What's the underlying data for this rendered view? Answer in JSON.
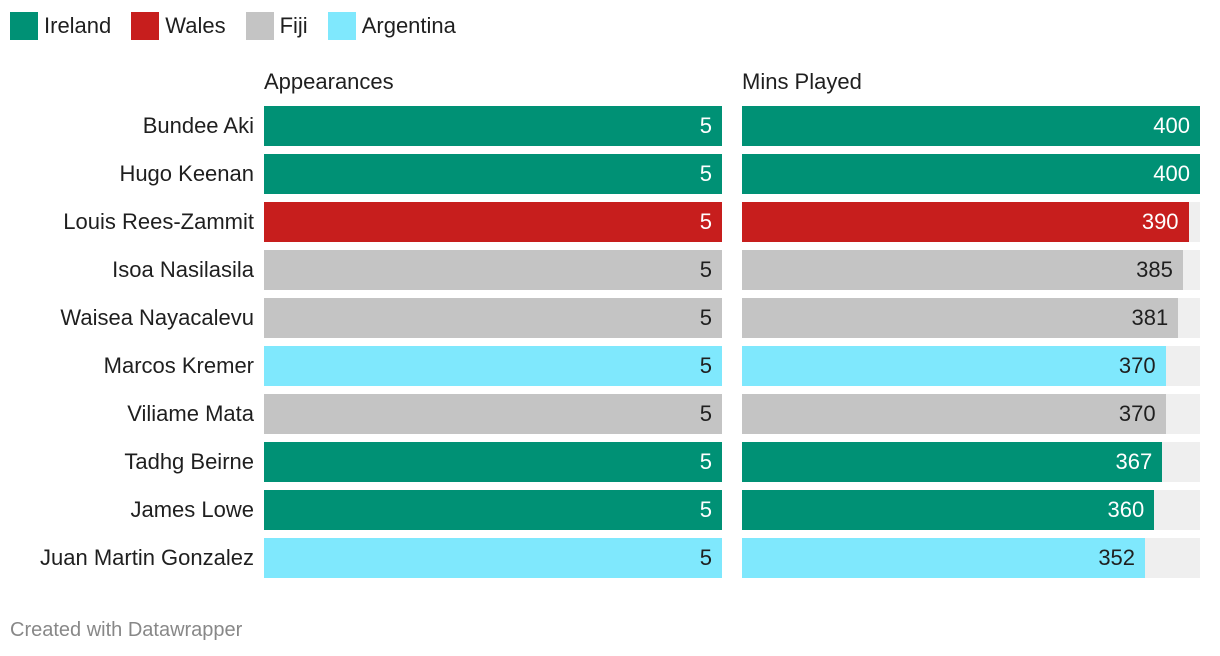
{
  "legend": [
    {
      "label": "Ireland",
      "color": "#009175"
    },
    {
      "label": "Wales",
      "color": "#c71e1d"
    },
    {
      "label": "Fiji",
      "color": "#c4c4c4"
    },
    {
      "label": "Argentina",
      "color": "#7fe8fd"
    }
  ],
  "footer": "Created with Datawrapper",
  "chart_data": {
    "type": "bar",
    "orientation": "horizontal",
    "categories": [
      "Bundee Aki",
      "Hugo Keenan",
      "Louis Rees-Zammit",
      "Isoa Nasilasila",
      "Waisea Nayacalevu",
      "Marcos Kremer",
      "Viliame Mata",
      "Tadhg Beirne",
      "James Lowe",
      "Juan Martin Gonzalez"
    ],
    "groups": [
      "Ireland",
      "Ireland",
      "Wales",
      "Fiji",
      "Fiji",
      "Argentina",
      "Fiji",
      "Ireland",
      "Ireland",
      "Argentina"
    ],
    "series": [
      {
        "name": "Appearances",
        "values": [
          5,
          5,
          5,
          5,
          5,
          5,
          5,
          5,
          5,
          5
        ],
        "xlim": [
          0,
          5
        ]
      },
      {
        "name": "Mins Played",
        "values": [
          400,
          400,
          390,
          385,
          381,
          370,
          370,
          367,
          360,
          352
        ],
        "xlim": [
          0,
          400
        ]
      }
    ],
    "legend_position": "top-left",
    "grid": false
  }
}
